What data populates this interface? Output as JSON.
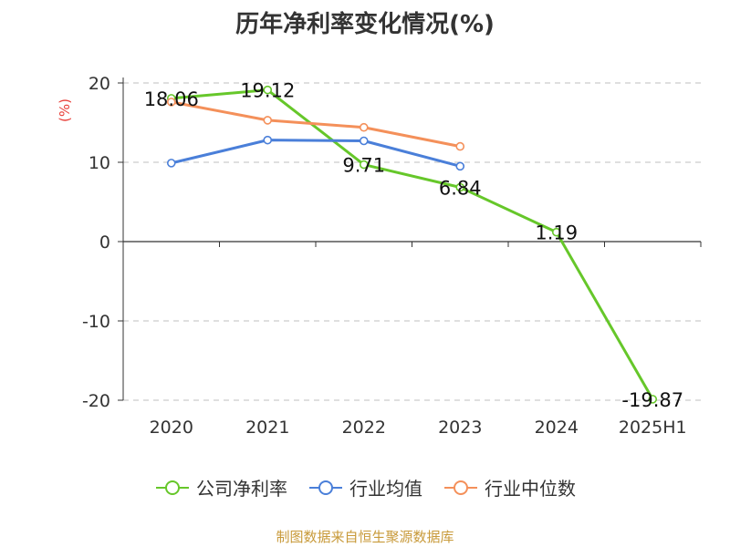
{
  "colors": {
    "company": "#66c72a",
    "avg": "#4a7fd9",
    "median": "#f4905a",
    "axis": "#333333",
    "grid": "#cccccc",
    "unit": "#e8403a",
    "source": "#c89a3a"
  },
  "chart_data": {
    "type": "line",
    "title": "历年净利率变化情况(%)",
    "ylabel": "(%)",
    "xlabel": "",
    "categories": [
      "2020",
      "2021",
      "2022",
      "2023",
      "2024",
      "2025H1"
    ],
    "ylim": [
      -20,
      20
    ],
    "yticks": [
      20,
      10,
      0,
      -10,
      -20
    ],
    "grid": true,
    "legend_position": "bottom",
    "series": [
      {
        "name": "公司净利率",
        "key": "company",
        "values": [
          18.06,
          19.12,
          9.71,
          6.84,
          1.19,
          -19.87
        ],
        "labels": [
          "18.06",
          "19.12",
          "9.71",
          "6.84",
          "1.19",
          "-19.87"
        ]
      },
      {
        "name": "行业均值",
        "key": "avg",
        "values": [
          9.9,
          12.8,
          12.7,
          9.5,
          null,
          null
        ]
      },
      {
        "name": "行业中位数",
        "key": "median",
        "values": [
          17.6,
          15.3,
          14.4,
          12.0,
          null,
          null
        ]
      }
    ]
  },
  "source_text": "制图数据来自恒生聚源数据库"
}
